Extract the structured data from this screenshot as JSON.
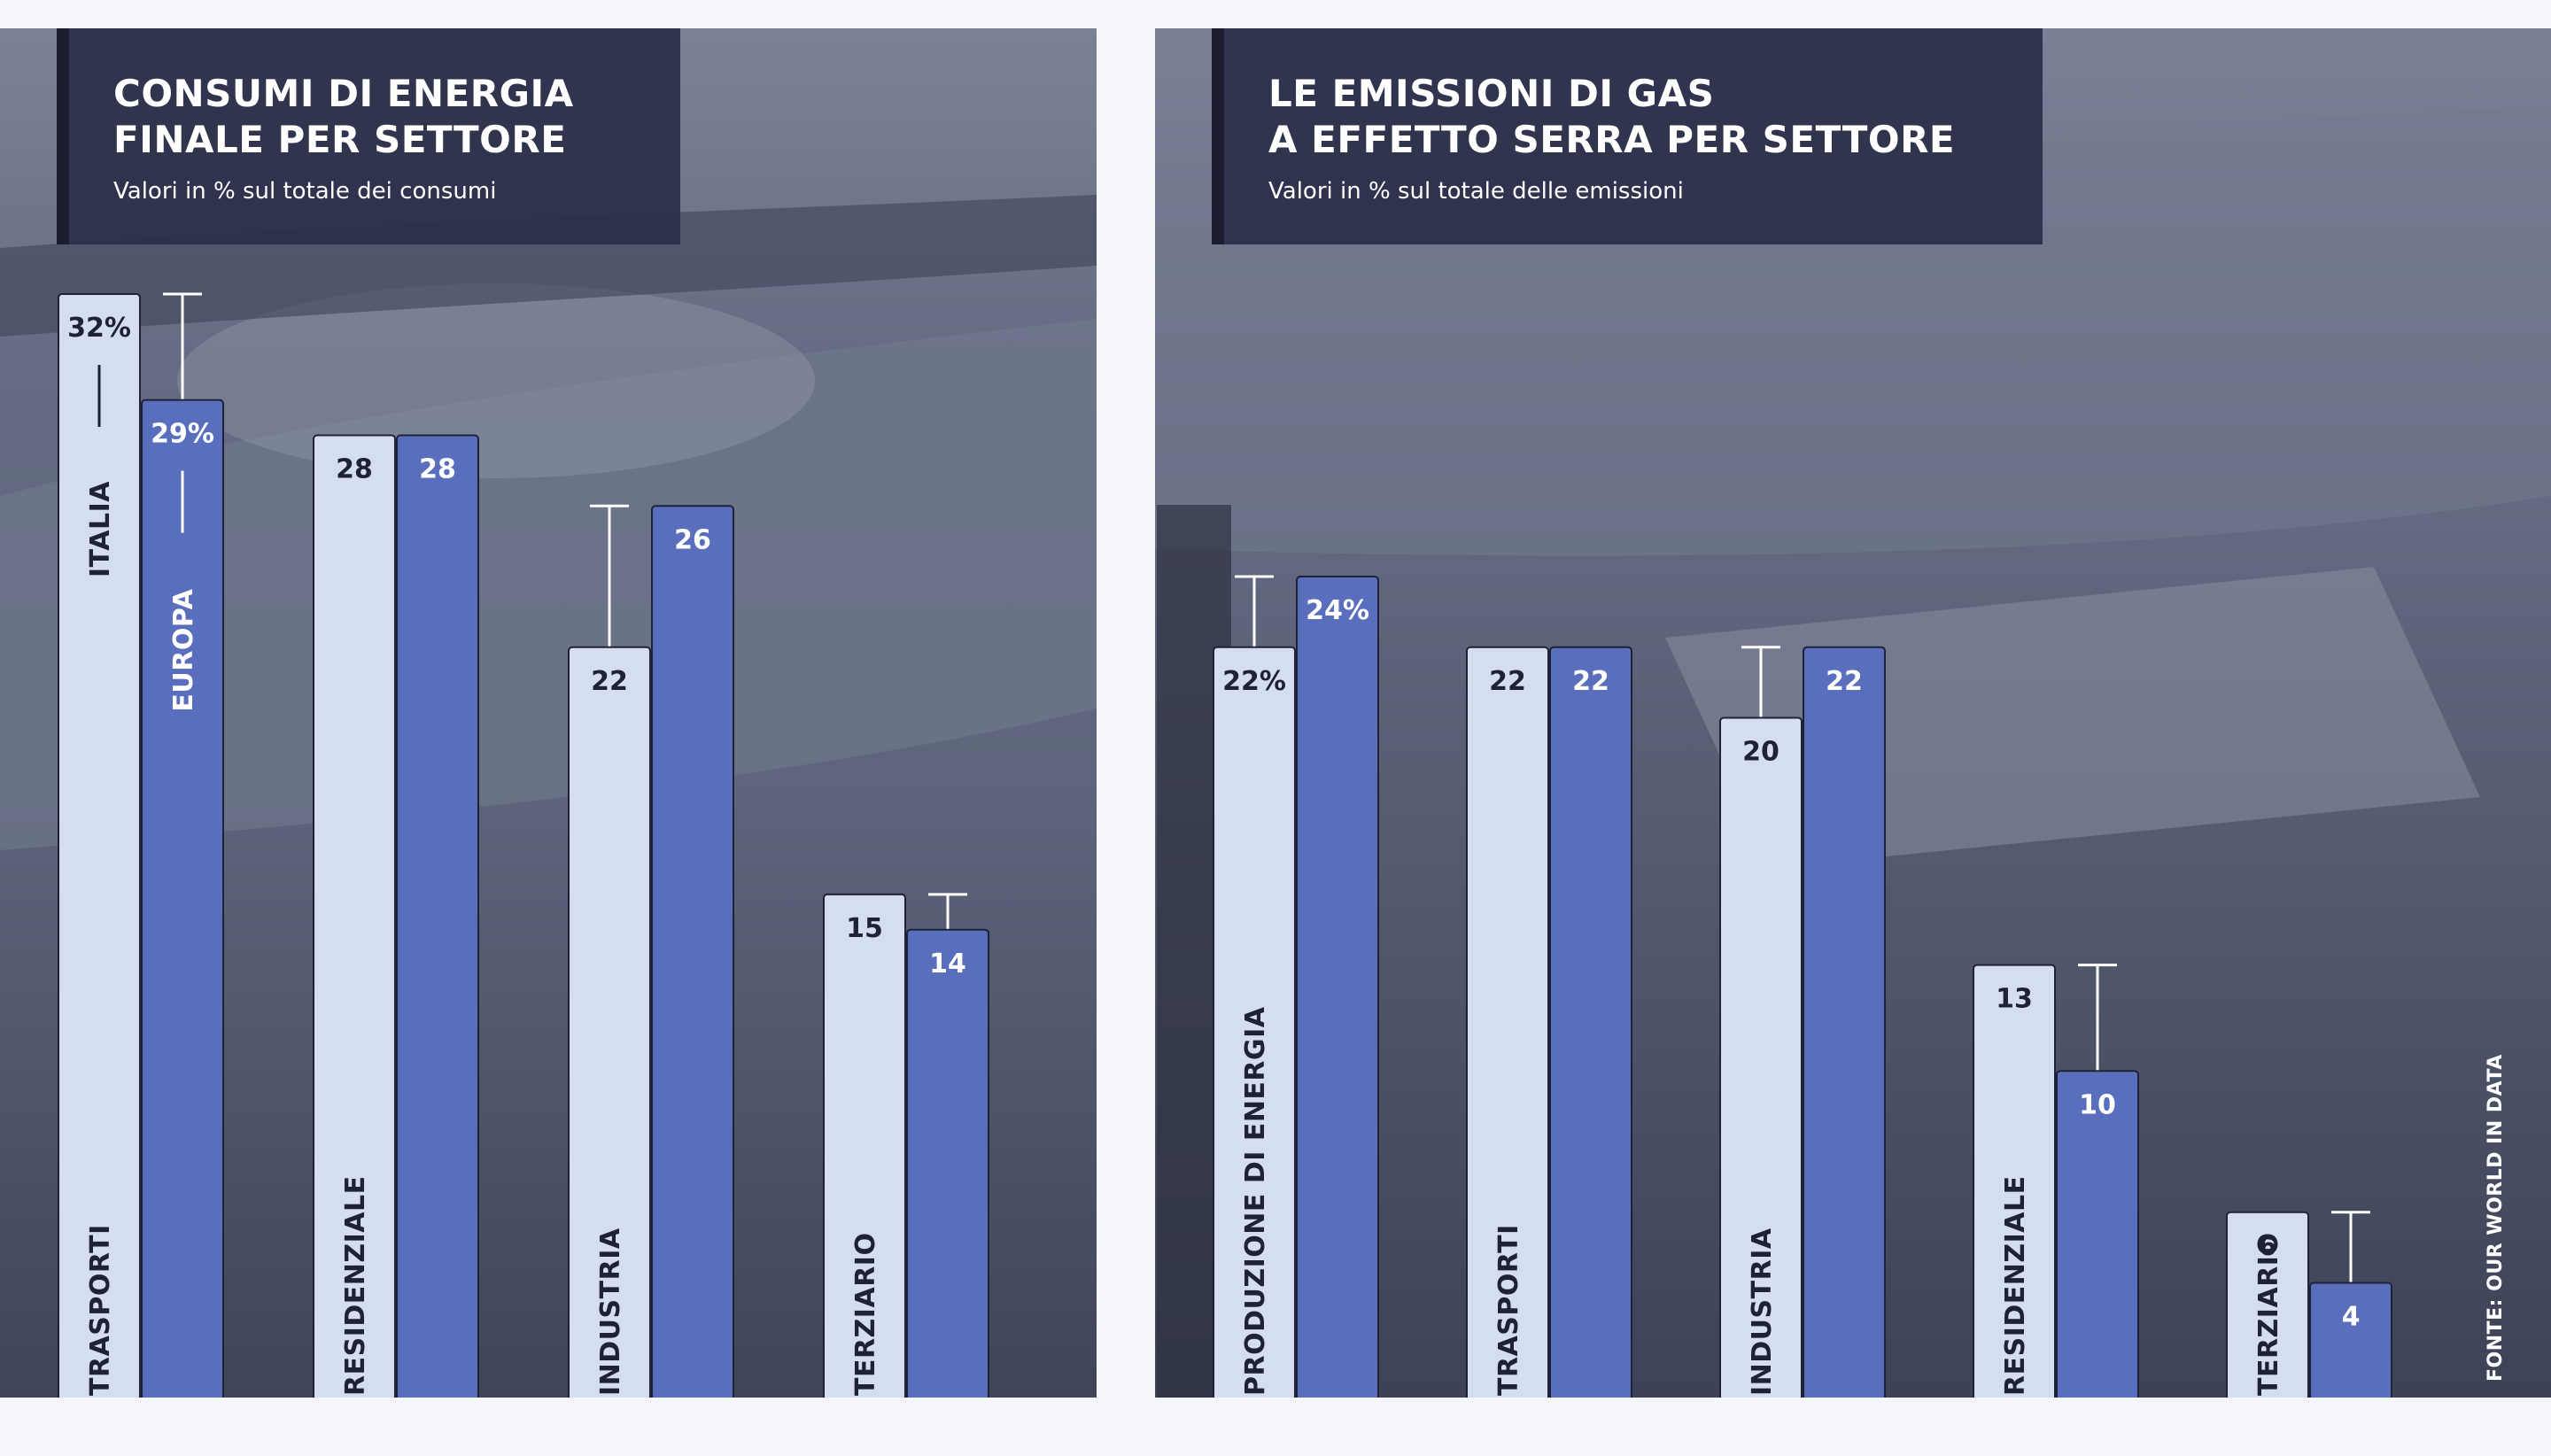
{
  "colors": {
    "page_background": "#f4f6fa",
    "photo_tint": "#5a6078",
    "title_box": "#2a2e48",
    "italia_bar": "#d5def0",
    "europa_bar": "#5a6ebe",
    "bar_outline": "#1e2236",
    "text_dark": "#1e2236",
    "text_light": "#ffffff"
  },
  "source_note": "FONTE: OUR WORLD IN DATA",
  "chart_data": [
    {
      "type": "bar",
      "title_line1": "CONSUMI DI ENERGIA",
      "title_line2": "FINALE PER SETTORE",
      "subtitle": "Valori in % sul totale dei consumi",
      "series": [
        {
          "name": "ITALIA",
          "values": [
            32,
            28,
            22,
            15
          ]
        },
        {
          "name": "EUROPA",
          "values": [
            29,
            28,
            26,
            14
          ]
        }
      ],
      "value_labels": {
        "ITALIA": [
          "32%",
          "28",
          "22",
          "15"
        ],
        "EUROPA": [
          "29%",
          "28",
          "26",
          "14"
        ]
      },
      "categories": [
        "TRASPORTI",
        "RESIDENZIALE",
        "INDUSTRIA",
        "TERZIARIO"
      ],
      "ylim": [
        0,
        32
      ],
      "legend_placement": "inside first bars (vertical)",
      "grid": false
    },
    {
      "type": "bar",
      "title_line1": "LE EMISSIONI DI GAS",
      "title_line2": "A EFFETTO SERRA PER SETTORE",
      "subtitle": "Valori in % sul totale delle emissioni",
      "series": [
        {
          "name": "ITALIA",
          "values": [
            22,
            22,
            20,
            13,
            6
          ]
        },
        {
          "name": "EUROPA",
          "values": [
            24,
            22,
            22,
            10,
            4
          ]
        }
      ],
      "value_labels": {
        "ITALIA": [
          "22%",
          "22",
          "20",
          "13",
          "6"
        ],
        "EUROPA": [
          "24%",
          "22",
          "22",
          "10",
          "4"
        ]
      },
      "categories": [
        "PRODUZIONE DI ENERGIA",
        "TRASPORTI",
        "INDUSTRIA",
        "RESIDENZIALE",
        "TERZIARIO"
      ],
      "ylim": [
        0,
        32
      ],
      "grid": false
    }
  ]
}
